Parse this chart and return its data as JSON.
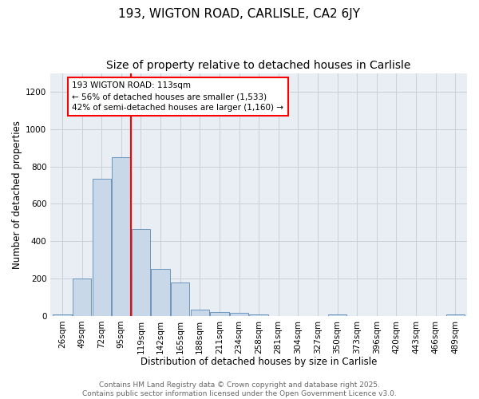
{
  "title1": "193, WIGTON ROAD, CARLISLE, CA2 6JY",
  "title2": "Size of property relative to detached houses in Carlisle",
  "xlabel": "Distribution of detached houses by size in Carlisle",
  "ylabel": "Number of detached properties",
  "bar_color": "#c8d8e8",
  "bar_edge_color": "#5a8ab5",
  "bin_labels": [
    "26sqm",
    "49sqm",
    "72sqm",
    "95sqm",
    "119sqm",
    "142sqm",
    "165sqm",
    "188sqm",
    "211sqm",
    "234sqm",
    "258sqm",
    "281sqm",
    "304sqm",
    "327sqm",
    "350sqm",
    "373sqm",
    "396sqm",
    "420sqm",
    "443sqm",
    "466sqm",
    "489sqm"
  ],
  "bar_values": [
    10,
    200,
    735,
    850,
    465,
    250,
    180,
    35,
    20,
    15,
    10,
    0,
    0,
    0,
    8,
    0,
    0,
    0,
    0,
    0,
    8
  ],
  "vline_x": 3.5,
  "vline_color": "red",
  "annotation_text": "193 WIGTON ROAD: 113sqm\n← 56% of detached houses are smaller (1,533)\n42% of semi-detached houses are larger (1,160) →",
  "annotation_box_color": "white",
  "annotation_box_edge_color": "red",
  "ylim": [
    0,
    1300
  ],
  "yticks": [
    0,
    200,
    400,
    600,
    800,
    1000,
    1200
  ],
  "grid_color": "#c8d0d8",
  "bg_color": "#e8eef4",
  "footer_text": "Contains HM Land Registry data © Crown copyright and database right 2025.\nContains public sector information licensed under the Open Government Licence v3.0.",
  "title_fontsize": 11,
  "subtitle_fontsize": 10,
  "axis_fontsize": 8.5,
  "tick_fontsize": 7.5,
  "footer_fontsize": 6.5
}
